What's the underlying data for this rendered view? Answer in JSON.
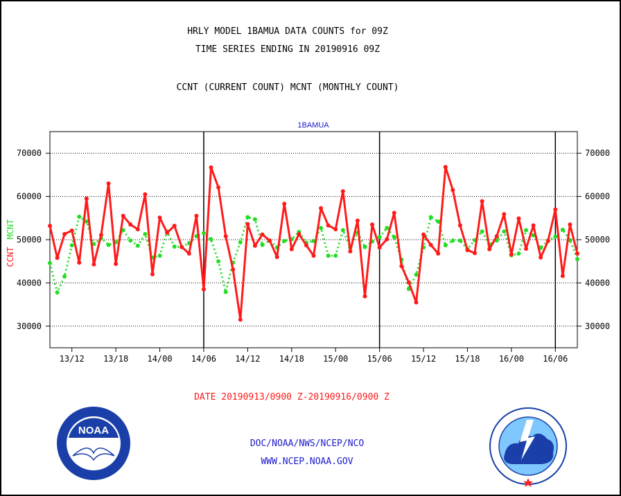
{
  "header": {
    "title1": "HRLY MODEL 1BAMUA DATA COUNTS for 09Z",
    "title2": "TIME SERIES ENDING IN 20190916 09Z",
    "subtitle": "CCNT (CURRENT COUNT) MCNT (MONTHLY COUNT)"
  },
  "footer": {
    "date_range": "DATE 20190913/0900 Z-20190916/0900 Z",
    "org": "DOC/NOAA/NWS/NCEP/NCO",
    "url": "WWW.NCEP.NOAA.GOV"
  },
  "colors": {
    "ccnt": "#ff1a1a",
    "mcnt": "#22dd22",
    "text_blue": "#1a1acc",
    "date_red": "#ff1a1a"
  },
  "chart_data": {
    "type": "line",
    "title": "1BAMUA",
    "ylabel_left_1": "CCNT",
    "ylabel_left_2": "MCNT",
    "ylim": [
      25000,
      75000
    ],
    "yticks": [
      30000,
      40000,
      50000,
      60000,
      70000
    ],
    "ytick_labels": [
      "30000",
      "40000",
      "50000",
      "60000",
      "70000"
    ],
    "grid": true,
    "x_start_hour": 9,
    "x_end_hour": 81,
    "xticks": [
      {
        "hour": 12,
        "label": "13/12"
      },
      {
        "hour": 18,
        "label": "13/18"
      },
      {
        "hour": 24,
        "label": "14/00"
      },
      {
        "hour": 30,
        "label": "14/06"
      },
      {
        "hour": 36,
        "label": "14/12"
      },
      {
        "hour": 42,
        "label": "14/18"
      },
      {
        "hour": 48,
        "label": "15/00"
      },
      {
        "hour": 54,
        "label": "15/06"
      },
      {
        "hour": 60,
        "label": "15/12"
      },
      {
        "hour": 66,
        "label": "15/18"
      },
      {
        "hour": 72,
        "label": "16/00"
      },
      {
        "hour": 78,
        "label": "16/06"
      }
    ],
    "day_markers": [
      30,
      54,
      78
    ],
    "series": [
      {
        "name": "CCNT",
        "values": [
          53200,
          45800,
          51300,
          52100,
          44700,
          59500,
          44300,
          51100,
          63000,
          44400,
          55500,
          53500,
          52400,
          60500,
          42000,
          55100,
          51600,
          53200,
          48300,
          46800,
          55500,
          38500,
          66700,
          62100,
          50800,
          43100,
          31500,
          53600,
          48600,
          51200,
          49800,
          46000,
          58300,
          47800,
          51300,
          48700,
          46300,
          57300,
          53300,
          52400,
          61200,
          47300,
          54400,
          36900,
          53500,
          48200,
          50100,
          56200,
          43900,
          40100,
          35500,
          51200,
          48800,
          46800,
          66800,
          61500,
          53300,
          47600,
          46900,
          58900,
          47800,
          50800,
          55900,
          46600,
          54900,
          47900,
          53300,
          45900,
          49700,
          57000,
          41600,
          53500,
          46800
        ]
      },
      {
        "name": "MCNT",
        "values": [
          44600,
          37800,
          41500,
          48700,
          55300,
          54200,
          49000,
          50300,
          48800,
          49400,
          52200,
          49800,
          48600,
          51300,
          45900,
          46300,
          51900,
          48400,
          48300,
          49200,
          50800,
          51500,
          50100,
          45000,
          37900,
          44700,
          49400,
          55200,
          54700,
          48800,
          49800,
          48200,
          49700,
          50100,
          51800,
          49300,
          49700,
          52700,
          46300,
          46300,
          52200,
          48200,
          51600,
          48300,
          49600,
          50600,
          52700,
          50600,
          45400,
          38600,
          41900,
          48200,
          55200,
          54200,
          48700,
          49800,
          49800,
          47800,
          49900,
          51900,
          48900,
          49800,
          51900,
          46400,
          46800,
          52200,
          51000,
          48100,
          49800,
          50700,
          52300,
          49900,
          45500
        ]
      }
    ]
  }
}
